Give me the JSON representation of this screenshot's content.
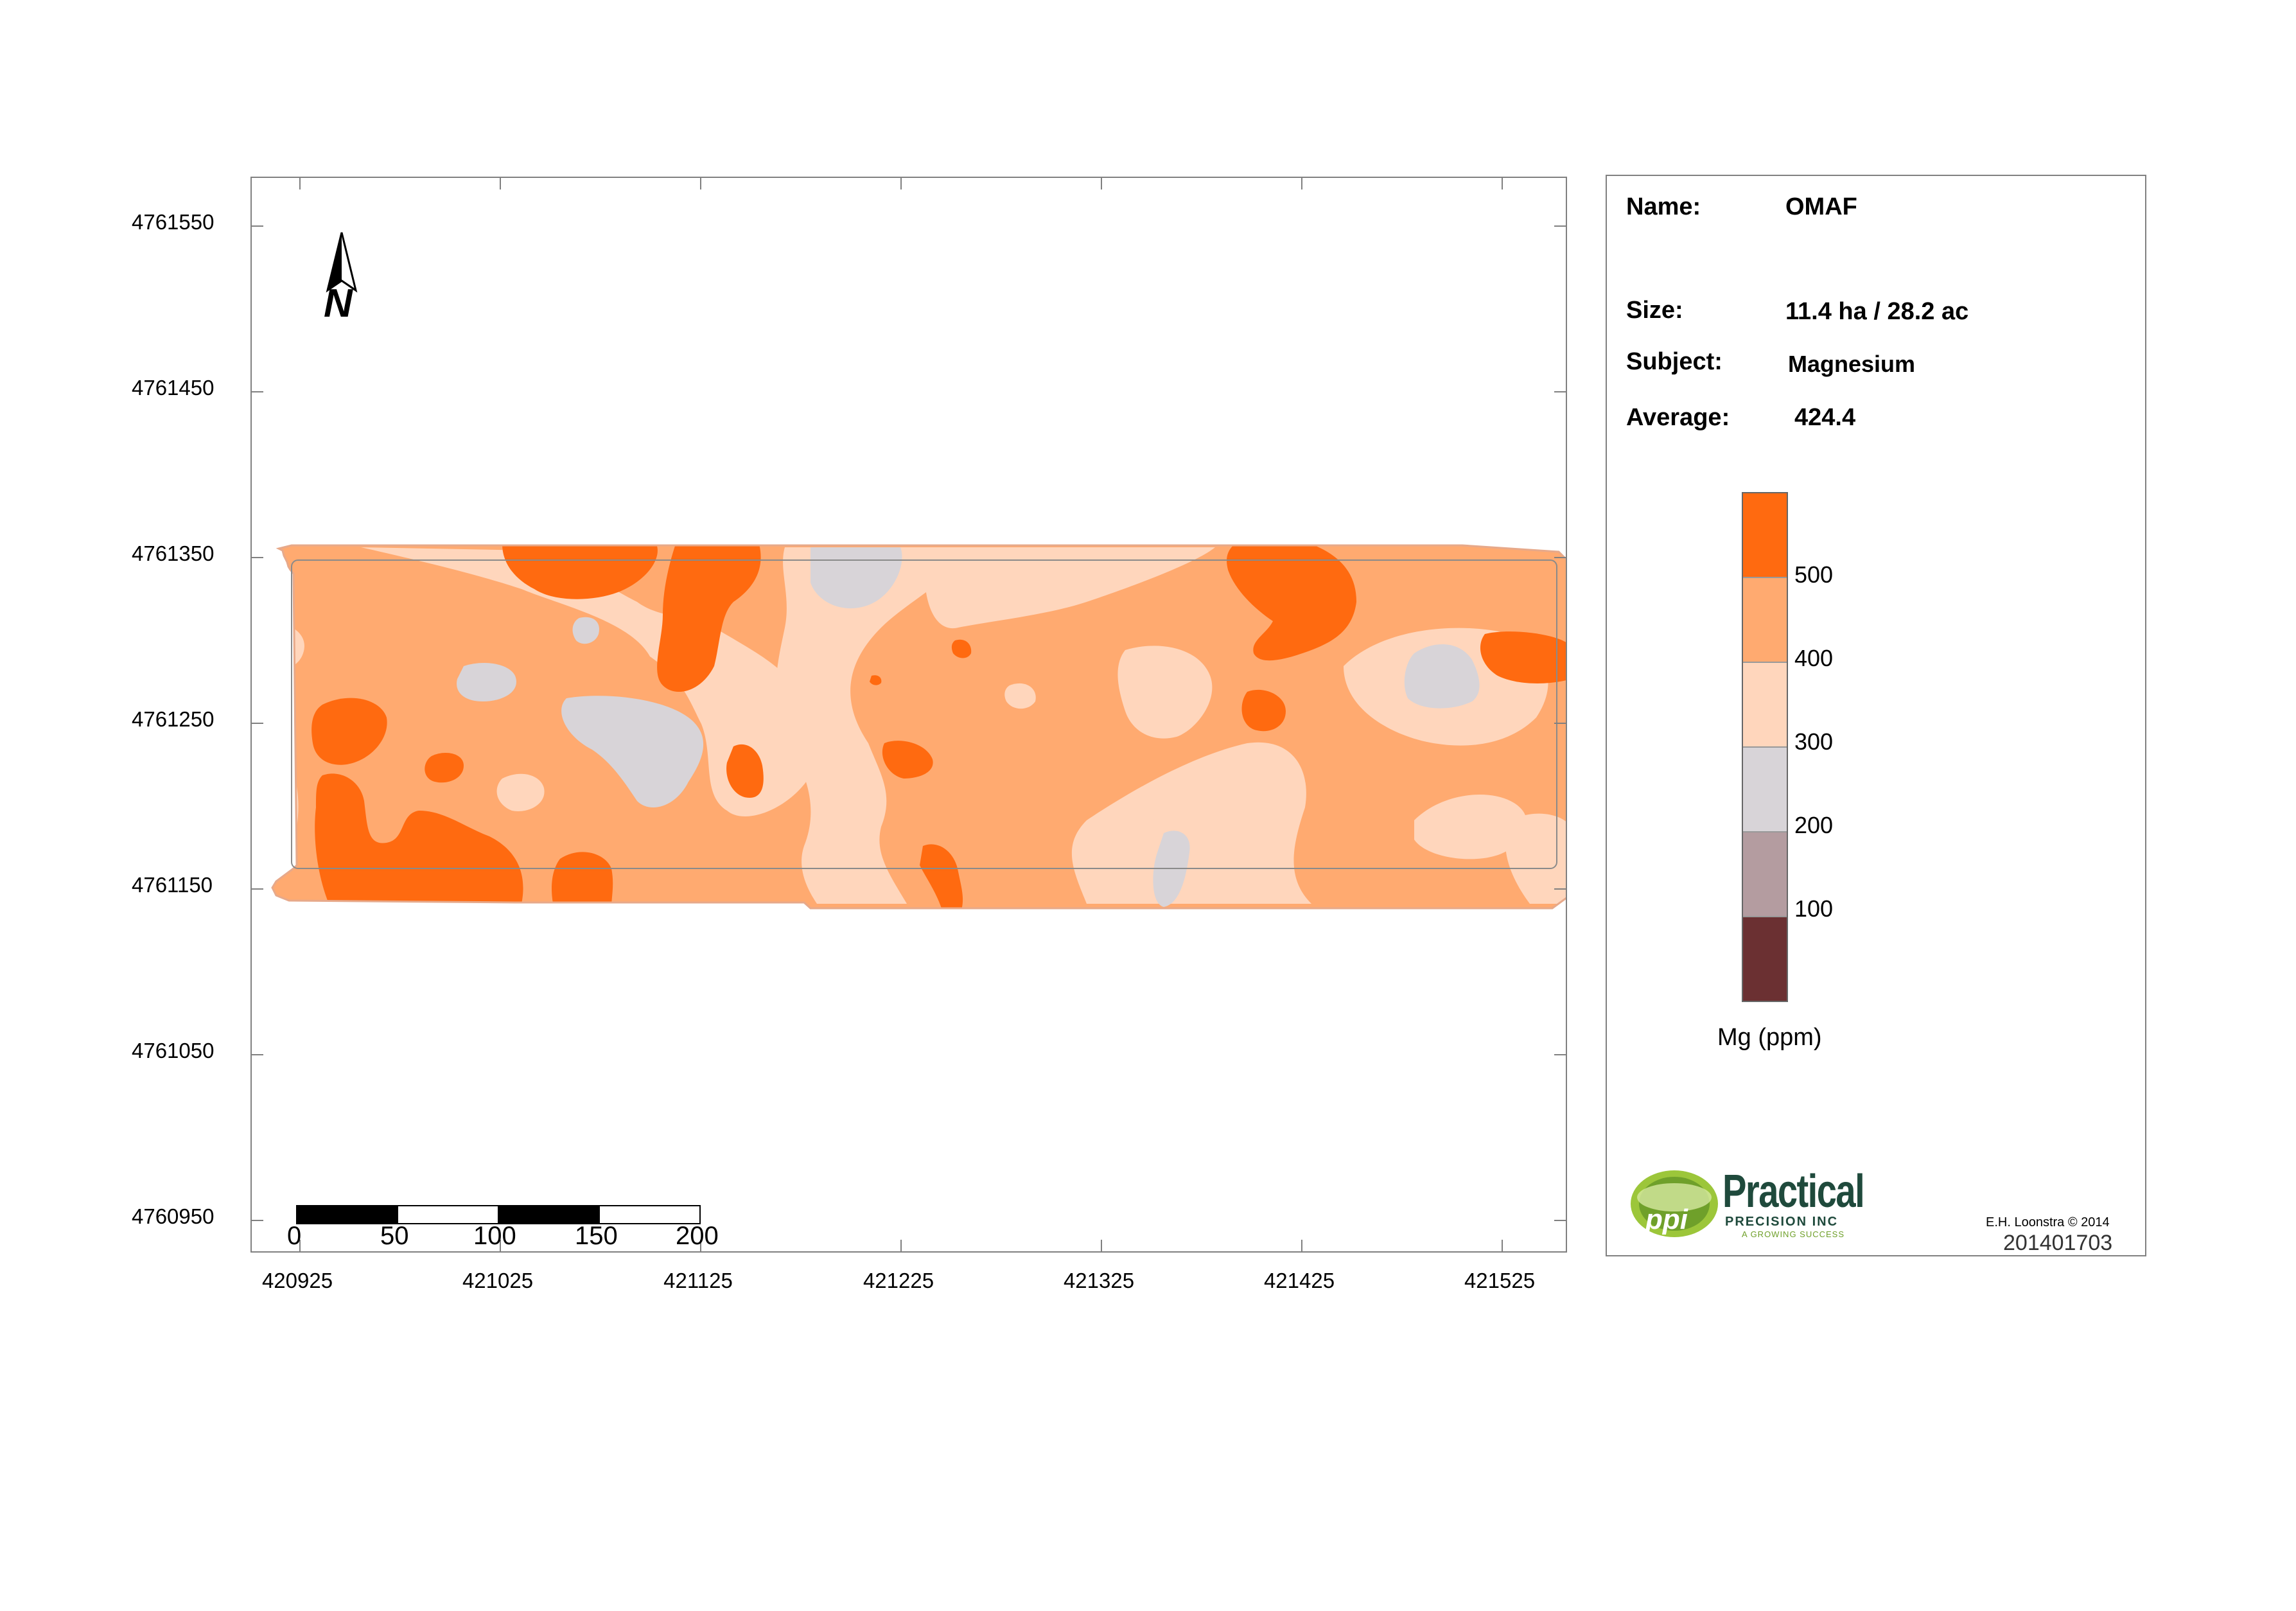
{
  "map": {
    "y_ticks": [
      "4761550",
      "4761450",
      "4761350",
      "4761250",
      "4761150",
      "4761050",
      "4760950"
    ],
    "x_ticks": [
      "420925",
      "421025",
      "421125",
      "421225",
      "421325",
      "421425",
      "421525"
    ],
    "north_label": "N",
    "scale_bar": {
      "labels": [
        "0",
        "50",
        "100",
        "150",
        "200"
      ]
    }
  },
  "info": {
    "name_label": "Name:",
    "name_value": "OMAF",
    "size_label": "Size:",
    "size_value": "11.4 ha / 28.2 ac",
    "subject_label": "Subject:",
    "subject_value": "Magnesium",
    "average_label": "Average:",
    "average_value": "424.4"
  },
  "legend": {
    "classes": [
      {
        "color": "#ff6a10"
      },
      {
        "color": "#ffaa70"
      },
      {
        "color": "#ffd6bc"
      },
      {
        "color": "#d8d4d8"
      },
      {
        "color": "#b49ca0"
      },
      {
        "color": "#6b3032"
      }
    ],
    "breaks": [
      "500",
      "400",
      "300",
      "200",
      "100"
    ],
    "unit": "Mg (ppm)"
  },
  "logo": {
    "brand": "Practical",
    "subline": "PRECISION INC",
    "tagline": "A GROWING SUCCESS",
    "initials": "ppi"
  },
  "credit": "E.H. Loonstra © 2014",
  "map_id": "201401703"
}
